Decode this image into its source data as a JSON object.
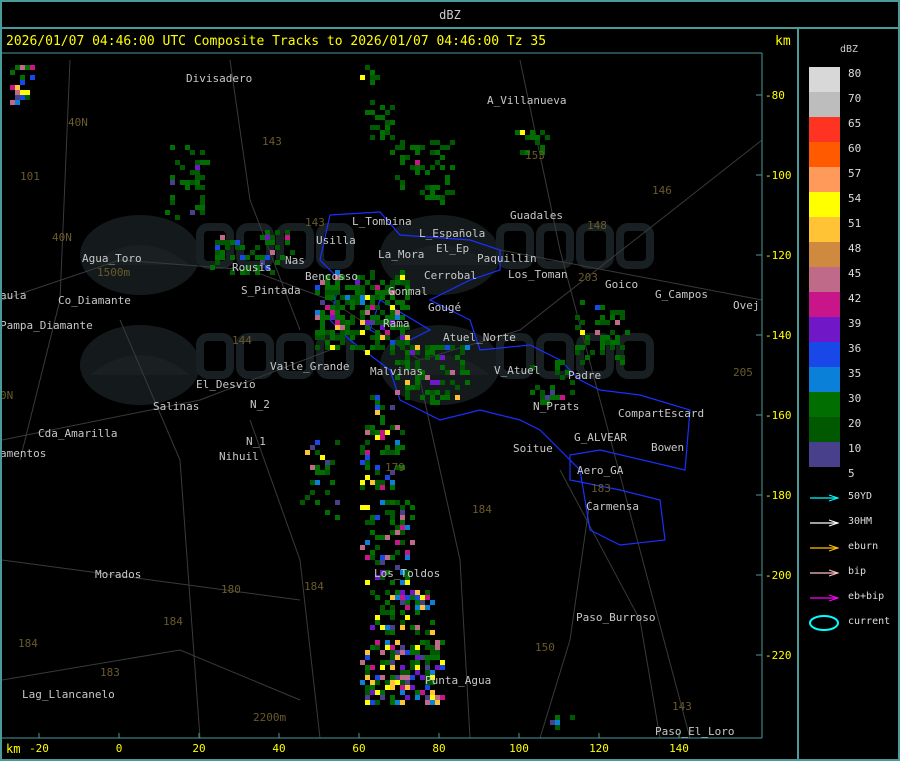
{
  "top_bar": {
    "title": "dBZ"
  },
  "header": {
    "title": "2026/01/07 04:46:00 UTC Composite Tracks to 2026/01/07 04:46:00 Tz 35",
    "units": "km"
  },
  "x_axis": {
    "units": "km",
    "ticks": [
      "-20",
      "0",
      "20",
      "40",
      "60",
      "80",
      "100",
      "120",
      "140"
    ]
  },
  "y_axis": {
    "ticks": [
      "-80",
      "-100",
      "-120",
      "-140",
      "-160",
      "-180",
      "-200",
      "-220"
    ]
  },
  "legend": {
    "title": "dBZ",
    "levels": [
      {
        "label": "80",
        "color": "#d8d8d8"
      },
      {
        "label": "70",
        "color": "#bdbdbd"
      },
      {
        "label": "65",
        "color": "#ff3322"
      },
      {
        "label": "60",
        "color": "#ff5a00"
      },
      {
        "label": "57",
        "color": "#ff9a5a"
      },
      {
        "label": "54",
        "color": "#ffff00"
      },
      {
        "label": "51",
        "color": "#ffc335"
      },
      {
        "label": "48",
        "color": "#d08a40"
      },
      {
        "label": "45",
        "color": "#c06a8a"
      },
      {
        "label": "42",
        "color": "#c8168a"
      },
      {
        "label": "39",
        "color": "#7018c8"
      },
      {
        "label": "36",
        "color": "#1848e8"
      },
      {
        "label": "35",
        "color": "#0a80d8"
      },
      {
        "label": "30",
        "color": "#006e00"
      },
      {
        "label": "20",
        "color": "#005800"
      },
      {
        "label": "10",
        "color": "#48408a"
      },
      {
        "label": "5",
        "color": null
      }
    ],
    "tracks": [
      {
        "label": "50YD",
        "color": "#00ffff"
      },
      {
        "label": "30HM",
        "color": "#ffffff"
      },
      {
        "label": "eburn",
        "color": "#ffc000"
      },
      {
        "label": "bip",
        "color": "#ffc0c8"
      },
      {
        "label": "eb+bip",
        "color": "#ff00ff"
      }
    ],
    "current": {
      "label": "current",
      "color": "#00ffff"
    }
  },
  "places": [
    "Divisadero",
    "A_Villanueva",
    "40N",
    "101",
    "143",
    "153",
    "146",
    "Guadales",
    "148",
    "143",
    "L_Tombina",
    "Usilla",
    "L_Española",
    "40N",
    "Agua_Toro",
    "1500m",
    "Rousis",
    "Nas",
    "La_Mora",
    "El_Ep",
    "Paquillin",
    "203",
    "Los_Toman",
    "Goico",
    "G_Campos",
    "Ovej",
    "S_Pintada",
    "Bencosso",
    "Cerrobal",
    "Gonmal",
    "Gougé",
    "aula",
    "Co_Diamante",
    "Pampa_Diamante",
    "Rama",
    "Atuel_Norte",
    "144",
    "Valle_Grande",
    "Malvinas",
    "V_Atuel",
    "Padre",
    "205",
    "El_Desvio",
    "N_2",
    "Salinas",
    "N_Prats",
    "CompartEscard",
    "Cda_Amarilla",
    "N_1",
    "G_ALVEAR",
    "Soitue",
    "Bowen",
    "amentos",
    "Nihuil",
    "179",
    "Aero_GA",
    "183",
    "Carmensa",
    "184",
    "Morados",
    "Los_Toldos",
    "180",
    "184",
    "184",
    "Paso_Burroso",
    "150",
    "184",
    "183",
    "Punta_Agua",
    "Lag_Llancanelo",
    "2200m",
    "143",
    "Paso_El_Loro",
    "0N"
  ],
  "watermark": {
    "logo": "DACC",
    "text": "Dirección de Agricultura y Contingencias Climáticas"
  }
}
